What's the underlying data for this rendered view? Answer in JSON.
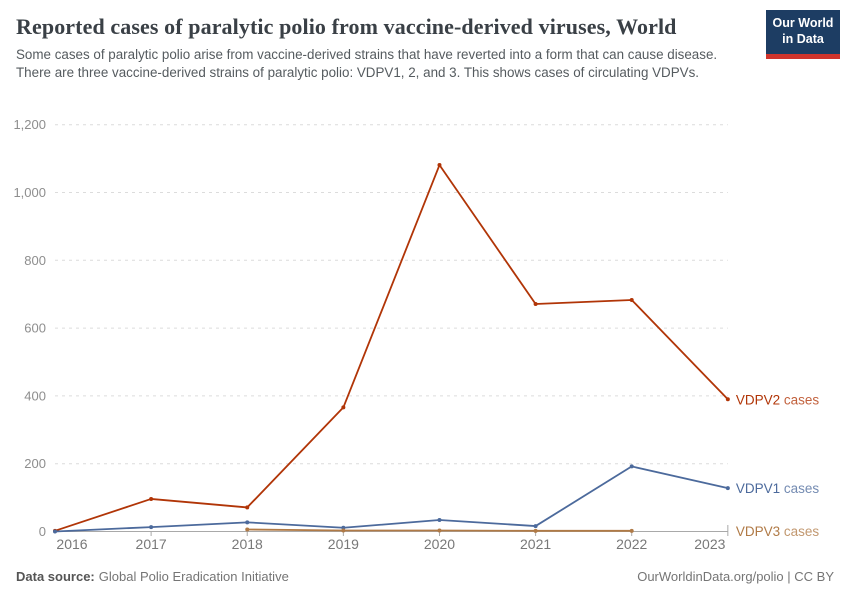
{
  "header": {
    "title": "Reported cases of paralytic polio from vaccine-derived viruses, World",
    "subtitle": "Some cases of paralytic polio arise from vaccine-derived strains that have reverted into a form that can cause disease. There are three vaccine-derived strains of paralytic polio: VDPV1, 2, and 3. This shows cases of circulating VDPVs.",
    "logo": {
      "line1": "Our World",
      "line2": "in Data",
      "bg_color": "#1d3d63",
      "accent_color": "#d0342c"
    }
  },
  "chart_data": {
    "type": "line",
    "title": "Reported cases of paralytic polio from vaccine-derived viruses, World",
    "x": [
      2016,
      2017,
      2018,
      2019,
      2020,
      2021,
      2022,
      2023
    ],
    "series": [
      {
        "name": "VDPV2 cases",
        "color": "#b13507",
        "values": [
          2,
          96,
          71,
          366,
          1081,
          671,
          683,
          390
        ]
      },
      {
        "name": "VDPV1 cases",
        "color": "#4c6a9c",
        "values": [
          0,
          13,
          27,
          11,
          34,
          16,
          192,
          128
        ]
      },
      {
        "name": "VDPV3 cases",
        "color": "#b07a46",
        "values": [
          null,
          null,
          6,
          3,
          3,
          2,
          2,
          null
        ]
      }
    ],
    "xlabel": "",
    "ylabel": "",
    "ylim": [
      0,
      1200
    ],
    "yticks": [
      0,
      200,
      400,
      600,
      800,
      1000,
      1200
    ],
    "grid": "horizontal-dashed",
    "legend_position": "right-end-labels"
  },
  "footer": {
    "source_label": "Data source:",
    "source_value": "Global Polio Eradication Initiative",
    "attribution": "OurWorldinData.org/polio | CC BY"
  }
}
